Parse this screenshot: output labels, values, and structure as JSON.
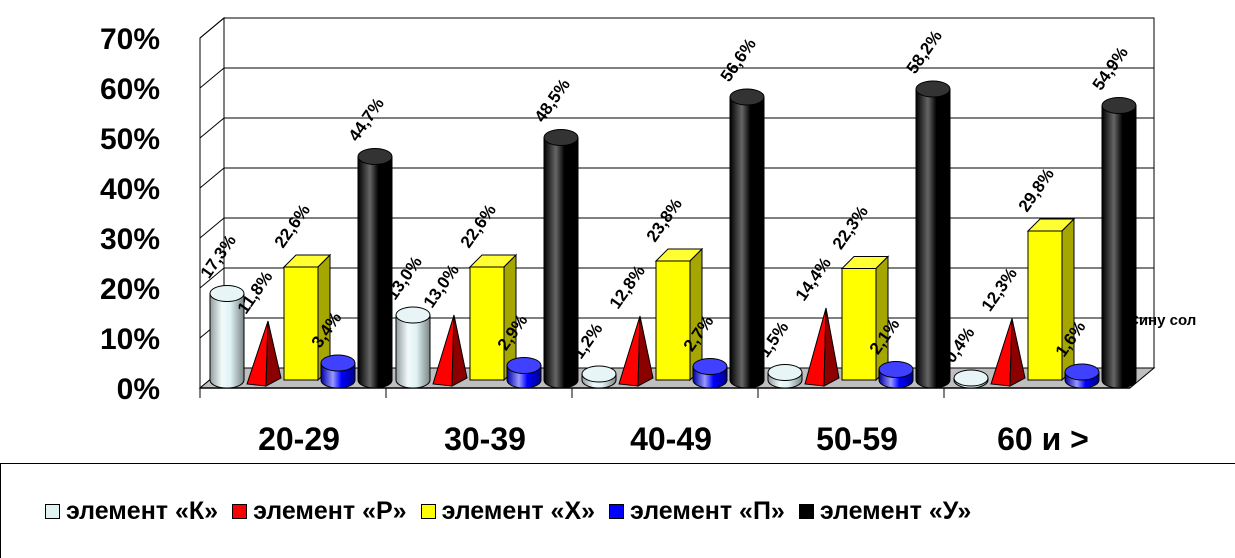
{
  "chart_data": {
    "type": "bar",
    "categories": [
      "20-29",
      "30-39",
      "40-49",
      "50-59",
      "60 и >"
    ],
    "y_ticks": [
      "0%",
      "10%",
      "20%",
      "30%",
      "40%",
      "50%",
      "60%",
      "70%"
    ],
    "ylim": [
      0,
      70
    ],
    "series": [
      {
        "name": "элемент «К»",
        "color": "#dff2f4",
        "shape": "cylinder",
        "values": [
          17.3,
          13.0,
          1.2,
          1.5,
          0.4
        ],
        "labels": [
          "17,3%",
          "13,0%",
          "1,2%",
          "1,5%",
          "0,4%"
        ]
      },
      {
        "name": "элемент «Р»",
        "color": "#ff0000",
        "shape": "pyramid",
        "values": [
          11.8,
          13.0,
          12.8,
          14.4,
          12.3
        ],
        "labels": [
          "11,8%",
          "13,0%",
          "12,8%",
          "14,4%",
          "12,3%"
        ]
      },
      {
        "name": "элемент «Х»",
        "color": "#ffff00",
        "shape": "box",
        "values": [
          22.6,
          22.6,
          23.8,
          22.3,
          29.8
        ],
        "labels": [
          "22,6%",
          "22,6%",
          "23,8%",
          "22,3%",
          "29,8%"
        ]
      },
      {
        "name": "элемент «П»",
        "color": "#0000ff",
        "shape": "cylinder",
        "values": [
          3.4,
          2.9,
          2.7,
          2.1,
          1.6
        ],
        "labels": [
          "3,4%",
          "2,9%",
          "2,7%",
          "2,1%",
          "1,6%"
        ]
      },
      {
        "name": "элемент «У»",
        "color": "#000000",
        "shape": "cylinder",
        "values": [
          44.7,
          48.5,
          56.6,
          58.2,
          54.9
        ],
        "labels": [
          "44,7%",
          "48,5%",
          "56,6%",
          "58,2%",
          "54,9%"
        ]
      }
    ],
    "legend_position": "bottom",
    "grid": true,
    "clipped_text": "Сину сол"
  }
}
